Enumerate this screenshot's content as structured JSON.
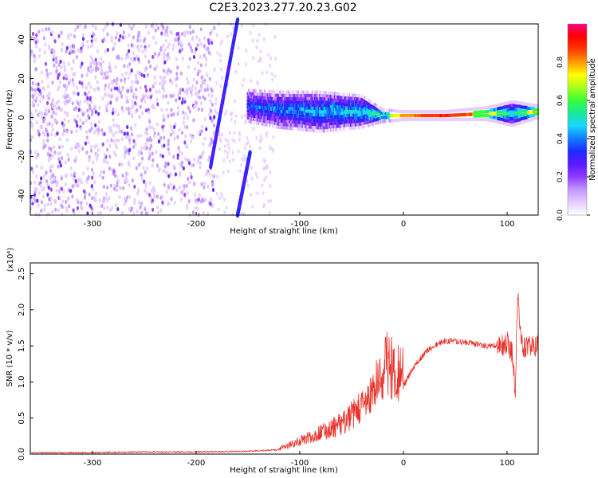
{
  "title": "C2E3.2023.277.20.23.G02",
  "colors": {
    "snr_line": "#e8332b",
    "colormap": [
      "#ffffff",
      "#e6ccff",
      "#c299ff",
      "#8f3dff",
      "#5a19ff",
      "#1d2bff",
      "#0f7dff",
      "#18d6ff",
      "#19e89a",
      "#37ff37",
      "#a6ff1f",
      "#ffff00",
      "#ff9a00",
      "#ff3a00",
      "#ff0000",
      "#ff0080"
    ]
  },
  "chart_data": [
    {
      "type": "heatmap",
      "xlabel": "Height of straight line (km)",
      "ylabel": "Frequency (Hz)",
      "xlim": [
        -360,
        130
      ],
      "ylim": [
        -50,
        48
      ],
      "x_ticks": [
        -300,
        -200,
        -100,
        0,
        100
      ],
      "y_ticks": [
        -40,
        -20,
        0,
        20,
        40
      ],
      "colorbar": {
        "label": "Normalized spectral amplitude",
        "range": [
          0,
          1
        ],
        "ticks": [
          "0.0",
          "0.2",
          "0.4",
          "0.6",
          "0.8"
        ]
      },
      "features": {
        "noise_region": {
          "x": [
            -360,
            -182
          ],
          "amplitude": 0.1
        },
        "oblique_track_upper": {
          "from": [
            -186,
            -25
          ],
          "to": [
            -160,
            50
          ],
          "amplitude": 0.3
        },
        "oblique_track_lower": {
          "from": [
            -160,
            -50
          ],
          "to": [
            -148,
            -18
          ],
          "amplitude": 0.3
        },
        "signal_band": [
          {
            "x": -150,
            "freq": 6,
            "width": 8,
            "amplitude": 0.35
          },
          {
            "x": -120,
            "freq": 4,
            "width": 9,
            "amplitude": 0.4
          },
          {
            "x": -80,
            "freq": 3,
            "width": 10,
            "amplitude": 0.45
          },
          {
            "x": -40,
            "freq": 3,
            "width": 8,
            "amplitude": 0.5
          },
          {
            "x": -20,
            "freq": 1,
            "width": 3,
            "amplitude": 0.6
          },
          {
            "x": 0,
            "freq": 1,
            "width": 2,
            "amplitude": 0.8
          },
          {
            "x": 40,
            "freq": 1,
            "width": 2,
            "amplitude": 0.9
          },
          {
            "x": 80,
            "freq": 2,
            "width": 3,
            "amplitude": 0.8
          },
          {
            "x": 105,
            "freq": 2,
            "width": 6,
            "amplitude": 0.5
          },
          {
            "x": 130,
            "freq": 3,
            "width": 3,
            "amplitude": 0.8
          }
        ]
      }
    },
    {
      "type": "line",
      "xlabel": "Height of straight line (km)",
      "ylabel": "SNR (10 * v/v)",
      "y_scale_label": "(x10⁴)",
      "xlim": [
        -360,
        130
      ],
      "ylim": [
        0,
        2.65
      ],
      "x_ticks": [
        -300,
        -200,
        -100,
        0,
        100
      ],
      "y_ticks": [
        0.0,
        0.5,
        1.0,
        1.5,
        2.0,
        2.5
      ],
      "series": [
        {
          "x": [
            -360,
            -300,
            -250,
            -200,
            -150,
            -120,
            -100,
            -80,
            -60,
            -40,
            -30,
            -20,
            -15,
            -10,
            0,
            10,
            20,
            30,
            40,
            60,
            80,
            95,
            100,
            105,
            108,
            110,
            115,
            120,
            130
          ],
          "y": [
            0.02,
            0.02,
            0.03,
            0.03,
            0.04,
            0.06,
            0.15,
            0.25,
            0.35,
            0.55,
            0.7,
            0.95,
            1.1,
            1.0,
            0.95,
            1.2,
            1.4,
            1.5,
            1.57,
            1.55,
            1.5,
            1.5,
            1.55,
            1.4,
            0.8,
            2.2,
            1.45,
            1.5,
            1.5
          ]
        }
      ]
    }
  ]
}
